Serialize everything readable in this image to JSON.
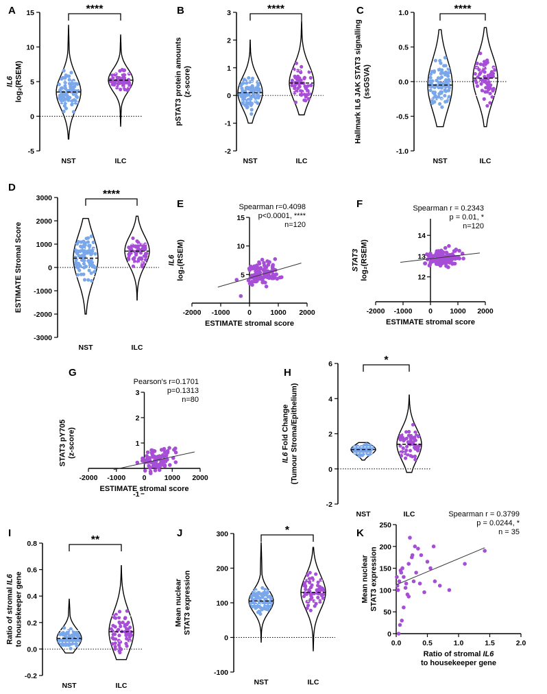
{
  "colors": {
    "nst": "#7aa7ea",
    "ilc": "#a64ed6",
    "axis": "#000000"
  },
  "chart_data": [
    {
      "id": "A",
      "type": "violin",
      "panel_label": "A",
      "ylabel_lines": [
        {
          "t": "IL6",
          "italic": true
        },
        {
          "t": "log₂(RSEM)"
        }
      ],
      "ylim": [
        -5,
        15
      ],
      "yticks": [
        "-5",
        "0",
        "5",
        "10",
        "15"
      ],
      "categories": [
        "NST",
        "ILC"
      ],
      "significance": "****",
      "series": [
        {
          "category": "NST",
          "median": 3.5,
          "q1": 2.0,
          "q3": 5.0,
          "min": -3.3,
          "max": 13.2
        },
        {
          "category": "ILC",
          "median": 5.2,
          "q1": 4.2,
          "q3": 6.2,
          "min": -1.5,
          "max": 11.8
        }
      ]
    },
    {
      "id": "B",
      "type": "violin",
      "panel_label": "B",
      "ylabel_lines": [
        {
          "t": "pSTAT3 protein amounts"
        },
        {
          "t": "(z-score)"
        }
      ],
      "ylim": [
        -2,
        3
      ],
      "yticks": [
        "-2",
        "-1",
        "0",
        "1",
        "2",
        "3"
      ],
      "categories": [
        "NST",
        "ILC"
      ],
      "significance": "****",
      "series": [
        {
          "category": "NST",
          "median": 0.1,
          "q1": -0.2,
          "q3": 0.5,
          "min": -1.0,
          "max": 2.0
        },
        {
          "category": "ILC",
          "median": 0.45,
          "q1": 0.1,
          "q3": 0.9,
          "min": -0.7,
          "max": 2.7
        }
      ]
    },
    {
      "id": "C",
      "type": "violin",
      "panel_label": "C",
      "ylabel_lines": [
        {
          "t": "Hallmark IL6 JAK STAT3 signalling"
        },
        {
          "t": "(ssGSVA)"
        }
      ],
      "ylim": [
        -1.0,
        1.0
      ],
      "yticks": [
        "-1.0",
        "-0.5",
        "0.0",
        "0.5",
        "1.0"
      ],
      "categories": [
        "NST",
        "ILC"
      ],
      "significance": "****",
      "series": [
        {
          "category": "NST",
          "median": -0.05,
          "q1": -0.25,
          "q3": 0.2,
          "min": -0.65,
          "max": 0.75
        },
        {
          "category": "ILC",
          "median": 0.05,
          "q1": -0.2,
          "q3": 0.2,
          "min": -0.65,
          "max": 0.78
        }
      ]
    },
    {
      "id": "D",
      "type": "violin",
      "panel_label": "D",
      "ylabel_lines": [
        {
          "t": "ESTIMATE Stromal  Score"
        }
      ],
      "ylim": [
        -3000,
        3000
      ],
      "yticks": [
        "-3000",
        "-2000",
        "-1000",
        "0",
        "1000",
        "2000",
        "3000"
      ],
      "categories": [
        "NST",
        "ILC"
      ],
      "significance": "****",
      "series": [
        {
          "category": "NST",
          "median": 400,
          "q1": -400,
          "q3": 800,
          "min": -2000,
          "max": 2100
        },
        {
          "category": "ILC",
          "median": 700,
          "q1": 200,
          "q3": 1000,
          "min": -1400,
          "max": 2200
        }
      ]
    },
    {
      "id": "E",
      "type": "scatter",
      "panel_label": "E",
      "ylabel_lines": [
        {
          "t": "IL6",
          "italic": true
        },
        {
          "t": "log₂(RSEM)"
        }
      ],
      "xlabel": "ESTIMATE stromal score",
      "xlim": [
        -2000,
        2000
      ],
      "ylim": [
        0,
        15
      ],
      "xticks": [
        "-2000",
        "-1000",
        "0",
        "1000",
        "2000"
      ],
      "yticks": [
        "5",
        "10",
        "15"
      ],
      "annotation": [
        "Spearman r=0.4098",
        "p<0.0001, ****",
        "n=120"
      ],
      "fit": {
        "x": [
          -1100,
          1800
        ],
        "y": [
          2.8,
          7.0
        ]
      },
      "seed": 11,
      "n": 120,
      "xr": [
        -1100,
        1800
      ],
      "center": [
        400,
        5.0
      ],
      "spread": [
        550,
        2.2
      ]
    },
    {
      "id": "F",
      "type": "scatter",
      "panel_label": "F",
      "ylabel_lines": [
        {
          "t": "STAT3",
          "italic": true
        },
        {
          "t": "log₂(RSEM)"
        }
      ],
      "xlabel": "ESTIMATE stromal score",
      "xlim": [
        -2000,
        2000
      ],
      "ylim": [
        10.8,
        14.8
      ],
      "xticks": [
        "-2000",
        "-1000",
        "0",
        "1000",
        "2000"
      ],
      "yticks": [
        "12",
        "13",
        "14"
      ],
      "annotation": [
        "Spearman r = 0.2343",
        "p = 0.01, *",
        "n=120"
      ],
      "fit": {
        "x": [
          -1100,
          1800
        ],
        "y": [
          12.7,
          13.15
        ]
      },
      "seed": 29,
      "n": 120,
      "xr": [
        -1100,
        1700
      ],
      "center": [
        500,
        12.95
      ],
      "spread": [
        550,
        0.45
      ]
    },
    {
      "id": "G",
      "type": "scatter",
      "panel_label": "G",
      "ylabel_lines": [
        {
          "t": "STAT3 pY705"
        },
        {
          "t": "(z-score)"
        }
      ],
      "xlabel": "ESTIMATE stromal score",
      "xlim": [
        -2000,
        2000
      ],
      "ylim": [
        -1,
        3
      ],
      "xticks": [
        "-2000",
        "-1000",
        "0",
        "1000",
        "2000"
      ],
      "yticks": [
        "-1",
        "1",
        "2",
        "3"
      ],
      "annotation": [
        "Pearson's r=0.1701",
        "p=0.1313",
        "n=80"
      ],
      "fit": {
        "x": [
          -1100,
          1800
        ],
        "y": [
          -0.05,
          0.65
        ]
      },
      "seed": 47,
      "n": 80,
      "xr": [
        -1000,
        1700
      ],
      "center": [
        500,
        0.3
      ],
      "spread": [
        550,
        0.55
      ]
    },
    {
      "id": "H",
      "type": "violin",
      "panel_label": "H",
      "ylabel_lines": [
        {
          "t": "IL6 Fold Change",
          "italic_first": true
        },
        {
          "t": "(Tumour Stroma/Epithelium)"
        }
      ],
      "ylim": [
        -2,
        6
      ],
      "yticks": [
        "-2",
        "0",
        "2",
        "4",
        "6"
      ],
      "categories": [
        "NST",
        "ILC"
      ],
      "significance": "*",
      "series": [
        {
          "category": "NST",
          "median": 1.1,
          "q1": 0.9,
          "q3": 1.25,
          "min": 0.5,
          "max": 1.5
        },
        {
          "category": "ILC",
          "median": 1.4,
          "q1": 0.9,
          "q3": 2.0,
          "min": -0.2,
          "max": 4.2
        }
      ]
    },
    {
      "id": "I",
      "type": "violin",
      "panel_label": "I",
      "ylabel_lines": [
        {
          "t": "Ratio of stromal IL6",
          "italic_last": true
        },
        {
          "t": "to housekeeper gene"
        }
      ],
      "ylim": [
        -0.2,
        0.8
      ],
      "yticks": [
        "-0.2",
        "0.0",
        "0.2",
        "0.4",
        "0.6",
        "0.8"
      ],
      "categories": [
        "NST",
        "ILC"
      ],
      "significance": "**",
      "series": [
        {
          "category": "NST",
          "median": 0.08,
          "q1": 0.05,
          "q3": 0.14,
          "min": -0.03,
          "max": 0.38
        },
        {
          "category": "ILC",
          "median": 0.13,
          "q1": 0.06,
          "q3": 0.25,
          "min": -0.08,
          "max": 0.63
        }
      ]
    },
    {
      "id": "J",
      "type": "violin",
      "panel_label": "J",
      "ylabel_lines": [
        {
          "t": "Mean nuclear"
        },
        {
          "t": "STAT3 expression"
        }
      ],
      "ylim": [
        -100,
        300
      ],
      "yticks": [
        "-100",
        "0",
        "100",
        "200",
        "300"
      ],
      "categories": [
        "NST",
        "ILC"
      ],
      "significance": "*",
      "series": [
        {
          "category": "NST",
          "median": 105,
          "q1": 95,
          "q3": 135,
          "min": -15,
          "max": 275
        },
        {
          "category": "ILC",
          "median": 130,
          "q1": 105,
          "q3": 165,
          "min": -40,
          "max": 260
        }
      ]
    },
    {
      "id": "K",
      "type": "scatter",
      "panel_label": "K",
      "ylabel_lines": [
        {
          "t": "Mean nuclear"
        },
        {
          "t": "STAT3 expression"
        }
      ],
      "xlabel_lines": [
        {
          "t": "Ratio of stromal IL6",
          "italic_last": true
        },
        {
          "t": "to housekeeper gene"
        }
      ],
      "xlim": [
        0,
        2.0
      ],
      "ylim": [
        0,
        250
      ],
      "xticks": [
        "0.0",
        "0.5",
        "1.0",
        "1.5",
        "2.0"
      ],
      "yticks": [
        "0",
        "50",
        "100",
        "150",
        "200",
        "250"
      ],
      "annotation": [
        "Spearman r = 0.3799",
        "p = 0.0244, *",
        "n = 35"
      ],
      "fit": {
        "x": [
          0,
          1.42
        ],
        "y": [
          112,
          197
        ]
      },
      "points": [
        [
          0.02,
          110
        ],
        [
          0.05,
          120
        ],
        [
          0.03,
          100
        ],
        [
          0.08,
          140
        ],
        [
          0.1,
          150
        ],
        [
          0.12,
          130
        ],
        [
          0.15,
          105
        ],
        [
          0.18,
          90
        ],
        [
          0.2,
          160
        ],
        [
          0.22,
          220
        ],
        [
          0.25,
          175
        ],
        [
          0.28,
          120
        ],
        [
          0.3,
          200
        ],
        [
          0.32,
          140
        ],
        [
          0.35,
          195
        ],
        [
          0.38,
          115
        ],
        [
          0.4,
          180
        ],
        [
          0.45,
          95
        ],
        [
          0.5,
          165
        ],
        [
          0.55,
          150
        ],
        [
          0.6,
          200
        ],
        [
          0.62,
          120
        ],
        [
          0.7,
          110
        ],
        [
          0.85,
          100
        ],
        [
          1.1,
          160
        ],
        [
          1.42,
          190
        ],
        [
          0.06,
          20
        ],
        [
          0.09,
          30
        ],
        [
          0.12,
          60
        ],
        [
          0.04,
          0
        ],
        [
          0.16,
          115
        ],
        [
          0.2,
          85
        ],
        [
          0.01,
          130
        ],
        [
          0.07,
          145
        ],
        [
          0.26,
          180
        ]
      ]
    }
  ]
}
